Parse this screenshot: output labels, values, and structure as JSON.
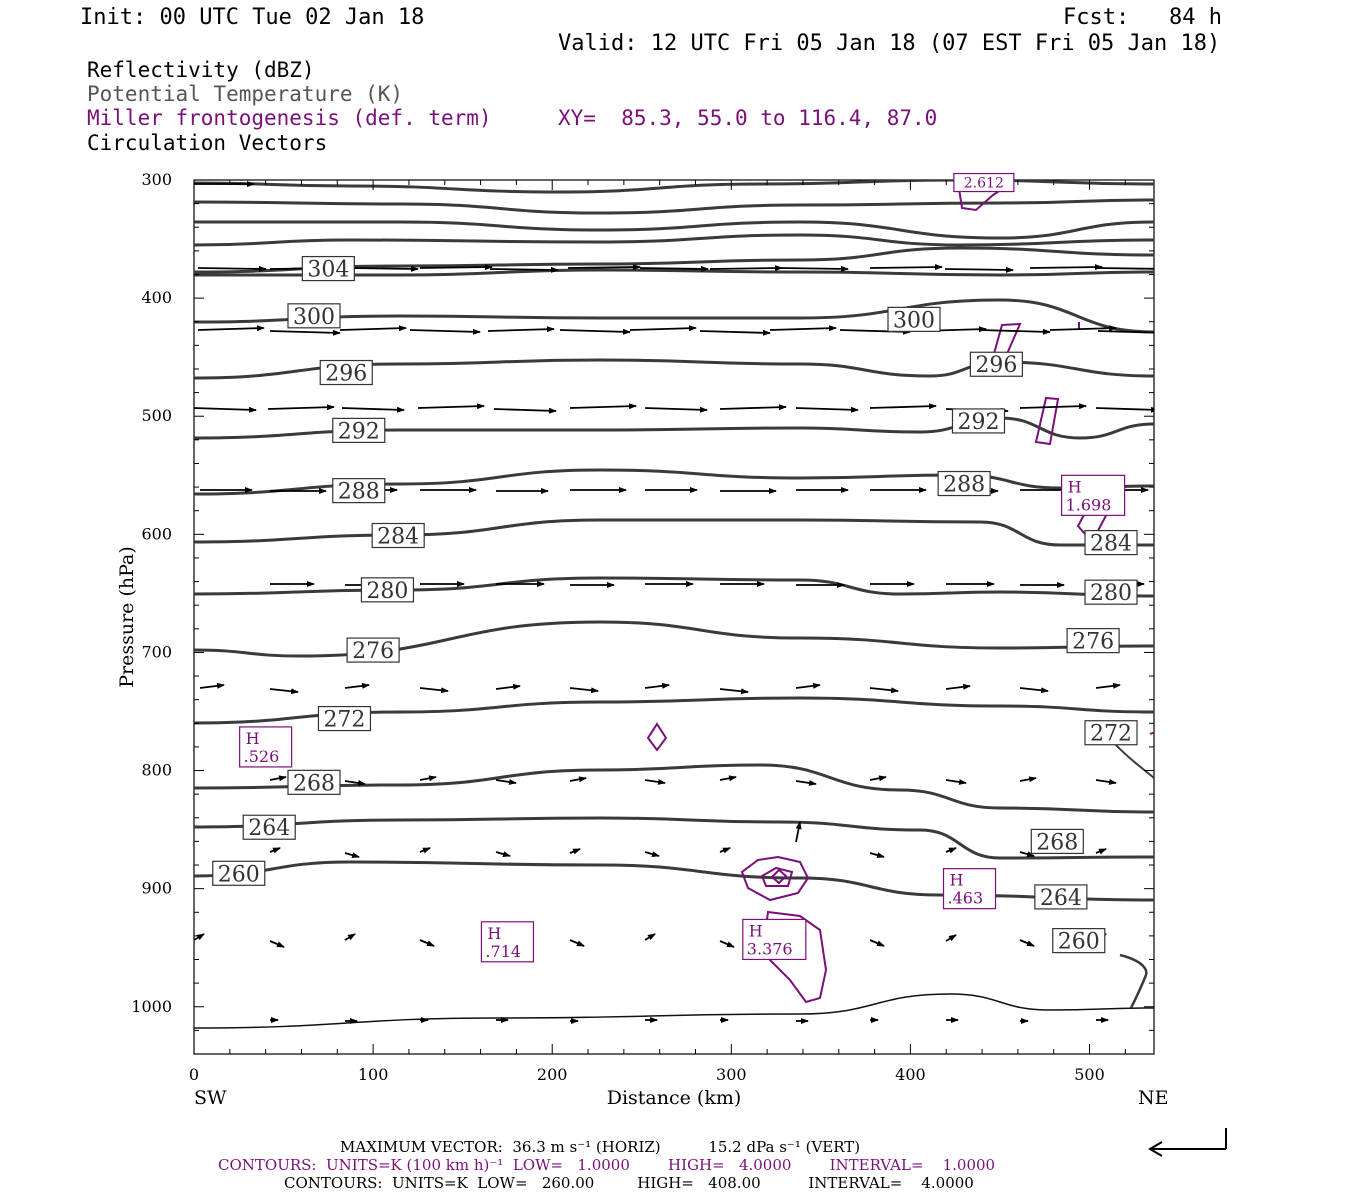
{
  "header": {
    "init": "Init: 00 UTC Tue 02 Jan 18",
    "fcst": "Fcst:   84 h",
    "valid": "Valid: 12 UTC Fri 05 Jan 18 (07 EST Fri 05 Jan 18)"
  },
  "legend": {
    "reflectivity": "Reflectivity (dBZ)",
    "theta": "Potential Temperature (K)",
    "frontogenesis": "Miller frontogenesis (def. term)",
    "vectors": "Circulation Vectors",
    "xy": "XY=  85.3, 55.0 to 116.4, 87.0"
  },
  "colors": {
    "theta": "#3a3a3a",
    "frontogenesis": "#7a0f7a",
    "vectors": "#000000"
  },
  "footer": {
    "max_vector": "MAXIMUM VECTOR:  36.3 m s⁻¹ (HORIZ)          15.2 dPa s⁻¹ (VERT)",
    "contours_fg": "CONTOURS:  UNITS=K (100 km h)⁻¹  LOW=   1.0000        HIGH=   4.0000        INTERVAL=    1.0000",
    "contours_theta": "CONTOURS:  UNITS=K  LOW=   260.00         HIGH=   408.00          INTERVAL=    4.0000"
  },
  "chart_data": {
    "type": "cross-section",
    "xlabel": "Distance (km)",
    "ylabel": "Pressure (hPa)",
    "xlim": [
      0,
      536
    ],
    "ylim": [
      1040,
      300
    ],
    "xticks": [
      0,
      100,
      200,
      300,
      400,
      500
    ],
    "yticks": [
      300,
      400,
      500,
      600,
      700,
      800,
      900,
      1000
    ],
    "left_end_label": "SW",
    "right_end_label": "NE",
    "isentropes_K": [
      260,
      264,
      268,
      272,
      276,
      280,
      284,
      288,
      292,
      296,
      300,
      304
    ],
    "isentrope_labels": [
      {
        "text": "304",
        "x": 75,
        "p": 375
      },
      {
        "text": "300",
        "x": 67,
        "p": 415
      },
      {
        "text": "300",
        "x": 402,
        "p": 418
      },
      {
        "text": "296",
        "x": 85,
        "p": 463
      },
      {
        "text": "296",
        "x": 448,
        "p": 456
      },
      {
        "text": "292",
        "x": 92,
        "p": 512
      },
      {
        "text": "292",
        "x": 438,
        "p": 504
      },
      {
        "text": "288",
        "x": 92,
        "p": 563
      },
      {
        "text": "288",
        "x": 430,
        "p": 557
      },
      {
        "text": "284",
        "x": 114,
        "p": 601
      },
      {
        "text": "284",
        "x": 512,
        "p": 607
      },
      {
        "text": "280",
        "x": 108,
        "p": 647
      },
      {
        "text": "280",
        "x": 512,
        "p": 649
      },
      {
        "text": "276",
        "x": 100,
        "p": 698
      },
      {
        "text": "276",
        "x": 502,
        "p": 690
      },
      {
        "text": "272",
        "x": 84,
        "p": 756
      },
      {
        "text": "272",
        "x": 512,
        "p": 768
      },
      {
        "text": "268",
        "x": 67,
        "p": 810
      },
      {
        "text": "268",
        "x": 482,
        "p": 860
      },
      {
        "text": "264",
        "x": 42,
        "p": 848
      },
      {
        "text": "264",
        "x": 484,
        "p": 907
      },
      {
        "text": "260",
        "x": 25,
        "p": 887
      },
      {
        "text": "260",
        "x": 494,
        "p": 944
      }
    ],
    "frontogenesis_labels": [
      {
        "text": "H",
        "value": ".526",
        "x": 40,
        "p": 780
      },
      {
        "text": "H",
        "value": ".714",
        "x": 175,
        "p": 945
      },
      {
        "text": "H",
        "value": "3.376",
        "x": 324,
        "p": 943
      },
      {
        "text": "H",
        "value": ".463",
        "x": 433,
        "p": 900
      },
      {
        "text": "H",
        "value": "1.698",
        "x": 502,
        "p": 567
      },
      {
        "text": "2.612",
        "x": 441,
        "p": 303
      }
    ]
  }
}
